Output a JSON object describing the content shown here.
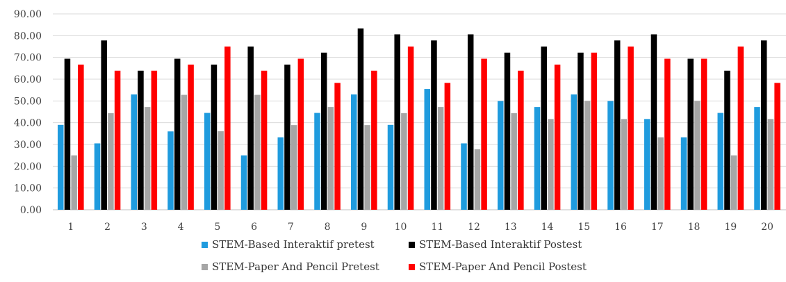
{
  "chart_data": {
    "type": "bar",
    "title": "",
    "xlabel": "",
    "ylabel": "",
    "ylim": [
      0,
      90
    ],
    "yticks": [
      "0.00",
      "10.00",
      "20.00",
      "30.00",
      "40.00",
      "50.00",
      "60.00",
      "70.00",
      "80.00",
      "90.00"
    ],
    "grid": true,
    "legend_placement": "bottom",
    "categories": [
      "1",
      "2",
      "3",
      "4",
      "5",
      "6",
      "7",
      "8",
      "9",
      "10",
      "11",
      "12",
      "13",
      "14",
      "15",
      "16",
      "17",
      "18",
      "19",
      "20"
    ],
    "series": [
      {
        "name": "STEM-Based Interaktif pretest",
        "color": "#1f9bde",
        "values": [
          39.0,
          30.5,
          53.0,
          36.0,
          44.5,
          25.0,
          33.3,
          44.5,
          53.0,
          39.0,
          55.5,
          30.5,
          50.0,
          47.2,
          53.0,
          50.0,
          41.7,
          33.3,
          44.5,
          47.2
        ]
      },
      {
        "name": "STEM-Based Interaktif Postest",
        "color": "#000000",
        "values": [
          69.4,
          77.8,
          63.9,
          69.4,
          66.7,
          75.0,
          66.7,
          72.2,
          83.3,
          80.6,
          77.8,
          80.6,
          72.2,
          75.0,
          72.2,
          77.8,
          80.6,
          69.4,
          63.9,
          77.8
        ]
      },
      {
        "name": "STEM-Paper And Pencil Pretest",
        "color": "#a6a6a6",
        "values": [
          25.0,
          44.4,
          47.2,
          52.8,
          36.1,
          52.8,
          38.9,
          47.2,
          38.9,
          44.4,
          47.2,
          27.8,
          44.4,
          41.7,
          50.0,
          41.7,
          33.3,
          50.0,
          25.0,
          41.7
        ]
      },
      {
        "name": "STEM-Paper And Pencil Postest",
        "color": "#ff0000",
        "values": [
          66.7,
          63.9,
          63.9,
          66.7,
          75.0,
          63.9,
          69.4,
          58.3,
          63.9,
          75.0,
          58.3,
          69.4,
          63.9,
          66.7,
          72.2,
          75.0,
          69.4,
          69.4,
          75.0,
          58.3
        ]
      }
    ]
  }
}
